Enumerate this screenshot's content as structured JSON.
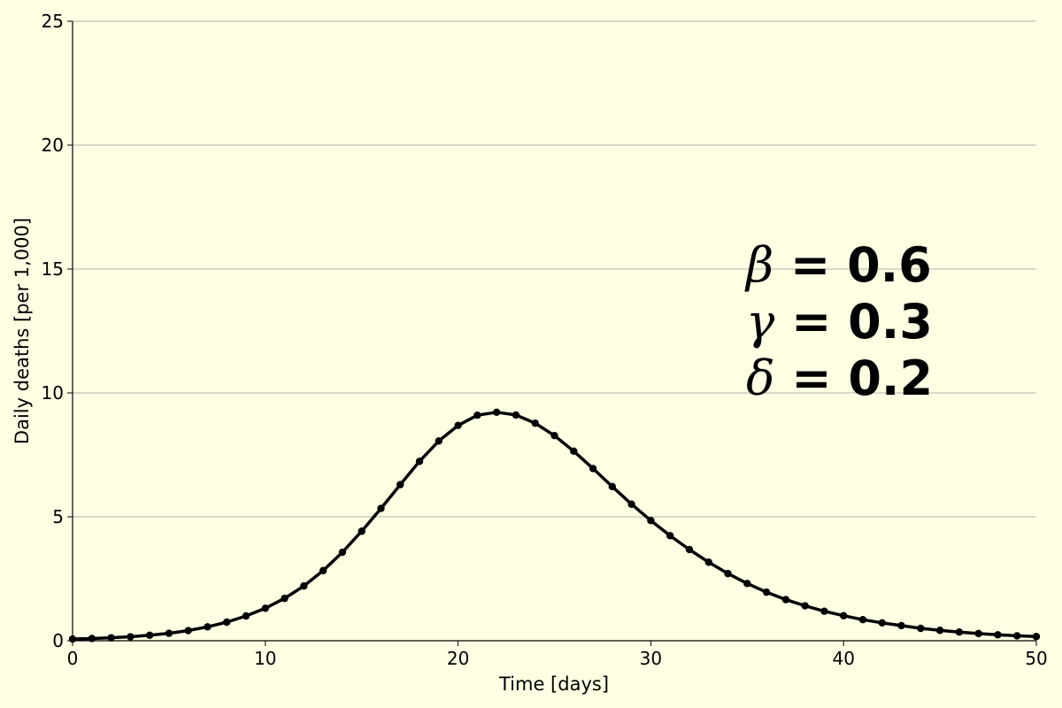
{
  "chart_data": {
    "type": "line",
    "xlabel": "Time [days]",
    "ylabel": "Daily deaths [per 1,000]",
    "xlim": [
      0,
      50
    ],
    "ylim": [
      0,
      25
    ],
    "x_ticks": [
      "0",
      "10",
      "20",
      "30",
      "40",
      "50"
    ],
    "y_ticks": [
      "0",
      "5",
      "10",
      "15",
      "20",
      "25"
    ],
    "grid": "horizontal",
    "background_color": "#ffffe4",
    "line_color": "#000000",
    "grid_color": "#b0b0b0",
    "annotations": [
      {
        "symbol": "β",
        "text": " = 0.6"
      },
      {
        "symbol": "γ",
        "text": " = 0.3"
      },
      {
        "symbol": "δ",
        "text": " = 0.2"
      }
    ],
    "x": [
      0,
      1,
      2,
      3,
      4,
      5,
      6,
      7,
      8,
      9,
      10,
      11,
      12,
      13,
      14,
      15,
      16,
      17,
      18,
      19,
      20,
      21,
      22,
      23,
      24,
      25,
      26,
      27,
      28,
      29,
      30,
      31,
      32,
      33,
      34,
      35,
      36,
      37,
      38,
      39,
      40,
      41,
      42,
      43,
      44,
      45,
      46,
      47,
      48,
      49,
      50
    ],
    "y": [
      0.07,
      0.09,
      0.12,
      0.16,
      0.22,
      0.3,
      0.41,
      0.56,
      0.75,
      1.0,
      1.31,
      1.71,
      2.21,
      2.83,
      3.57,
      4.42,
      5.34,
      6.3,
      7.24,
      8.06,
      8.69,
      9.1,
      9.22,
      9.11,
      8.78,
      8.28,
      7.65,
      6.95,
      6.22,
      5.51,
      4.85,
      4.24,
      3.68,
      3.17,
      2.71,
      2.31,
      1.96,
      1.66,
      1.41,
      1.19,
      1.01,
      0.85,
      0.72,
      0.61,
      0.5,
      0.42,
      0.35,
      0.29,
      0.24,
      0.2,
      0.17
    ]
  }
}
